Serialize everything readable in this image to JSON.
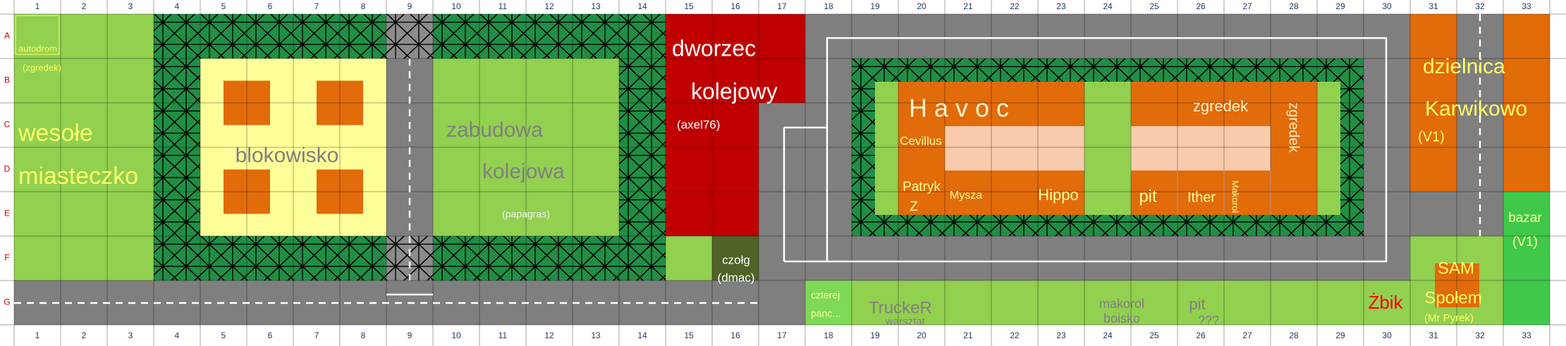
{
  "column_labels": [
    "1",
    "2",
    "3",
    "4",
    "5",
    "6",
    "7",
    "8",
    "9",
    "10",
    "11",
    "12",
    "13",
    "14",
    "15",
    "16",
    "17",
    "18",
    "19",
    "20",
    "21",
    "22",
    "23",
    "24",
    "25",
    "26",
    "27",
    "28",
    "29",
    "30",
    "31",
    "32",
    "33"
  ],
  "row_labels": [
    "A",
    "B",
    "C",
    "D",
    "E",
    "F",
    "G"
  ],
  "areas": [
    {
      "lines": [
        "autodrom",
        "(zgredek)"
      ]
    },
    {
      "lines": [
        "wesołe",
        "miasteczko"
      ]
    },
    {
      "lines": [
        "blokowisko"
      ]
    },
    {
      "lines": [
        "zabudowa",
        "kolejowa",
        "(papagras)"
      ]
    },
    {
      "lines": [
        "dworzec",
        "kolejowy",
        "(axel76)"
      ]
    },
    {
      "lines": [
        "czołg",
        "(dmac)"
      ]
    },
    {
      "lines": [
        "H a v o c"
      ]
    },
    {
      "lines": [
        "zgredek"
      ]
    },
    {
      "lines": [
        "zgredek"
      ]
    },
    {
      "lines": [
        "Cevillus"
      ]
    },
    {
      "lines": [
        "Patryk",
        "Z"
      ]
    },
    {
      "lines": [
        "Mysza"
      ]
    },
    {
      "lines": [
        "Hippo"
      ]
    },
    {
      "lines": [
        "pit"
      ]
    },
    {
      "lines": [
        "Ither"
      ]
    },
    {
      "lines": [
        "Makorol"
      ]
    },
    {
      "lines": [
        "dzielnica",
        "Karwikowo",
        "(V1)"
      ]
    },
    {
      "lines": [
        "bazar",
        "(V1)"
      ]
    },
    {
      "lines": [
        "SAM",
        "Społem",
        "(Mr Pyrek)"
      ]
    },
    {
      "lines": [
        "czterej",
        "panc..."
      ]
    },
    {
      "lines": [
        "TruckeR",
        "warsztat"
      ]
    },
    {
      "lines": [
        "makorol",
        "boisko"
      ]
    },
    {
      "lines": [
        "pit",
        "???"
      ]
    },
    {
      "lines": [
        "Żbik"
      ]
    }
  ]
}
